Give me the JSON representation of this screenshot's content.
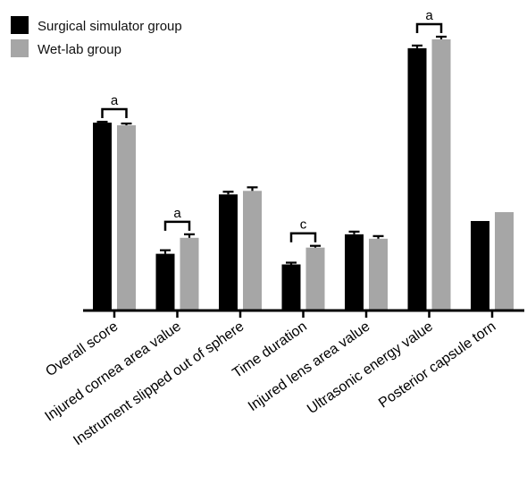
{
  "chart_data": {
    "type": "bar",
    "title": "",
    "xlabel": "",
    "ylabel": "",
    "ylim": [
      0,
      310
    ],
    "grid": false,
    "legend_placement": "top-left",
    "categories": [
      "Overall score",
      "Injured cornea area value",
      "Instrument slipped out of sphere",
      "Time duration",
      "Injured lens area value",
      "Ultrasonic energy value",
      "Posterior capsule torn"
    ],
    "series": [
      {
        "name": "Surgical simulator group",
        "color": "#000000",
        "values": [
          212,
          64,
          131,
          52,
          86,
          296,
          101
        ],
        "errors": [
          1,
          4,
          3,
          2,
          3,
          3,
          0
        ]
      },
      {
        "name": "Wet-lab group",
        "color": "#a6a6a6",
        "values": [
          209,
          82,
          135,
          71,
          81,
          306,
          111
        ],
        "errors": [
          2,
          4,
          4,
          2,
          3,
          3,
          0
        ]
      }
    ],
    "annotations": [
      {
        "category_index": 0,
        "label": "a"
      },
      {
        "category_index": 1,
        "label": "a"
      },
      {
        "category_index": 3,
        "label": "c"
      },
      {
        "category_index": 5,
        "label": "a"
      }
    ]
  }
}
